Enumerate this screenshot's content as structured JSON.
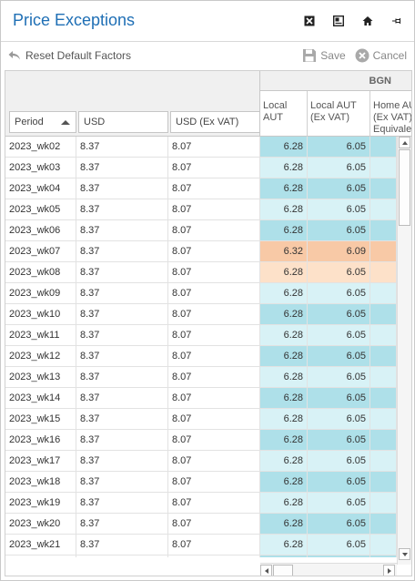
{
  "header": {
    "title": "Price Exceptions",
    "icons": [
      "close-x-icon",
      "window-icon",
      "home-icon",
      "pin-icon"
    ]
  },
  "toolbar": {
    "reset_label": "Reset Default Factors",
    "save_label": "Save",
    "cancel_label": "Cancel"
  },
  "grid": {
    "group_header": "BGN",
    "columns": [
      "Period",
      "USD",
      "USD (Ex VAT)",
      "Local\nAUT",
      "Local AUT\n(Ex VAT)",
      "Home AUT\n(Ex VAT)\nEquivalent"
    ],
    "colors": {
      "cyan_dark": "#aee0e9",
      "cyan_light": "#d8f2f6",
      "peach_dark": "#f8c9a6",
      "peach_light": "#fde1c9"
    },
    "rows": [
      {
        "period": "2023_wk02",
        "usd": "8.37",
        "usd_ex_vat": "8.07",
        "local_aut": "6.28",
        "local_aut_ex_vat": "6.05",
        "tone": "cyan_dark"
      },
      {
        "period": "2023_wk03",
        "usd": "8.37",
        "usd_ex_vat": "8.07",
        "local_aut": "6.28",
        "local_aut_ex_vat": "6.05",
        "tone": "cyan_light"
      },
      {
        "period": "2023_wk04",
        "usd": "8.37",
        "usd_ex_vat": "8.07",
        "local_aut": "6.28",
        "local_aut_ex_vat": "6.05",
        "tone": "cyan_dark"
      },
      {
        "period": "2023_wk05",
        "usd": "8.37",
        "usd_ex_vat": "8.07",
        "local_aut": "6.28",
        "local_aut_ex_vat": "6.05",
        "tone": "cyan_light"
      },
      {
        "period": "2023_wk06",
        "usd": "8.37",
        "usd_ex_vat": "8.07",
        "local_aut": "6.28",
        "local_aut_ex_vat": "6.05",
        "tone": "cyan_dark"
      },
      {
        "period": "2023_wk07",
        "usd": "8.37",
        "usd_ex_vat": "8.07",
        "local_aut": "6.32",
        "local_aut_ex_vat": "6.09",
        "tone": "peach_dark"
      },
      {
        "period": "2023_wk08",
        "usd": "8.37",
        "usd_ex_vat": "8.07",
        "local_aut": "6.28",
        "local_aut_ex_vat": "6.05",
        "tone": "peach_light"
      },
      {
        "period": "2023_wk09",
        "usd": "8.37",
        "usd_ex_vat": "8.07",
        "local_aut": "6.28",
        "local_aut_ex_vat": "6.05",
        "tone": "cyan_light"
      },
      {
        "period": "2023_wk10",
        "usd": "8.37",
        "usd_ex_vat": "8.07",
        "local_aut": "6.28",
        "local_aut_ex_vat": "6.05",
        "tone": "cyan_dark"
      },
      {
        "period": "2023_wk11",
        "usd": "8.37",
        "usd_ex_vat": "8.07",
        "local_aut": "6.28",
        "local_aut_ex_vat": "6.05",
        "tone": "cyan_light"
      },
      {
        "period": "2023_wk12",
        "usd": "8.37",
        "usd_ex_vat": "8.07",
        "local_aut": "6.28",
        "local_aut_ex_vat": "6.05",
        "tone": "cyan_dark"
      },
      {
        "period": "2023_wk13",
        "usd": "8.37",
        "usd_ex_vat": "8.07",
        "local_aut": "6.28",
        "local_aut_ex_vat": "6.05",
        "tone": "cyan_light"
      },
      {
        "period": "2023_wk14",
        "usd": "8.37",
        "usd_ex_vat": "8.07",
        "local_aut": "6.28",
        "local_aut_ex_vat": "6.05",
        "tone": "cyan_dark"
      },
      {
        "period": "2023_wk15",
        "usd": "8.37",
        "usd_ex_vat": "8.07",
        "local_aut": "6.28",
        "local_aut_ex_vat": "6.05",
        "tone": "cyan_light"
      },
      {
        "period": "2023_wk16",
        "usd": "8.37",
        "usd_ex_vat": "8.07",
        "local_aut": "6.28",
        "local_aut_ex_vat": "6.05",
        "tone": "cyan_dark"
      },
      {
        "period": "2023_wk17",
        "usd": "8.37",
        "usd_ex_vat": "8.07",
        "local_aut": "6.28",
        "local_aut_ex_vat": "6.05",
        "tone": "cyan_light"
      },
      {
        "period": "2023_wk18",
        "usd": "8.37",
        "usd_ex_vat": "8.07",
        "local_aut": "6.28",
        "local_aut_ex_vat": "6.05",
        "tone": "cyan_dark"
      },
      {
        "period": "2023_wk19",
        "usd": "8.37",
        "usd_ex_vat": "8.07",
        "local_aut": "6.28",
        "local_aut_ex_vat": "6.05",
        "tone": "cyan_light"
      },
      {
        "period": "2023_wk20",
        "usd": "8.37",
        "usd_ex_vat": "8.07",
        "local_aut": "6.28",
        "local_aut_ex_vat": "6.05",
        "tone": "cyan_dark"
      },
      {
        "period": "2023_wk21",
        "usd": "8.37",
        "usd_ex_vat": "8.07",
        "local_aut": "6.28",
        "local_aut_ex_vat": "6.05",
        "tone": "cyan_light"
      }
    ]
  }
}
